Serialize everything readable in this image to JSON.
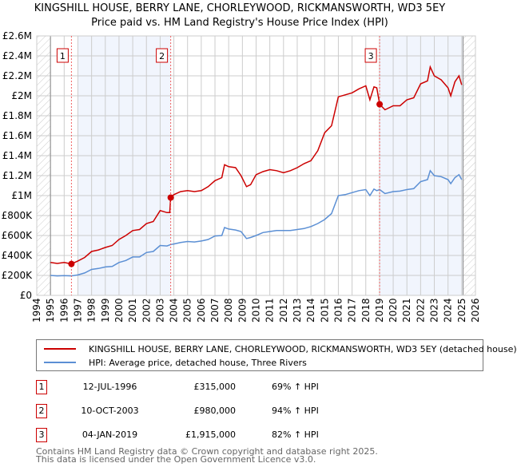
{
  "title_line1": "KINGSHILL HOUSE, BERRY LANE, CHORLEYWOOD, RICKMANSWORTH, WD3 5EY",
  "title_line2": "Price paid vs. HM Land Registry's House Price Index (HPI)",
  "chart_data": {
    "type": "line",
    "title": "KINGSHILL HOUSE, BERRY LANE, CHORLEYWOOD, RICKMANSWORTH, WD3 5EY - Price paid vs. HM Land Registry's House Price Index (HPI)",
    "xlim": [
      1994,
      2026
    ],
    "ylim": [
      0,
      2600000
    ],
    "x_ticks": [
      "1994",
      "1995",
      "1996",
      "1997",
      "1998",
      "1999",
      "2000",
      "2001",
      "2002",
      "2003",
      "2004",
      "2005",
      "2006",
      "2007",
      "2008",
      "2009",
      "2010",
      "2011",
      "2012",
      "2013",
      "2014",
      "2015",
      "2016",
      "2017",
      "2018",
      "2019",
      "2020",
      "2021",
      "2022",
      "2023",
      "2024",
      "2025",
      "2026"
    ],
    "y_ticks": [
      {
        "v": 0,
        "label": "£0"
      },
      {
        "v": 200000,
        "label": "£200K"
      },
      {
        "v": 400000,
        "label": "£400K"
      },
      {
        "v": 600000,
        "label": "£600K"
      },
      {
        "v": 800000,
        "label": "£800K"
      },
      {
        "v": 1000000,
        "label": "£1M"
      },
      {
        "v": 1200000,
        "label": "£1.2M"
      },
      {
        "v": 1400000,
        "label": "£1.4M"
      },
      {
        "v": 1600000,
        "label": "£1.6M"
      },
      {
        "v": 1800000,
        "label": "£1.8M"
      },
      {
        "v": 2000000,
        "label": "£2M"
      },
      {
        "v": 2200000,
        "label": "£2.2M"
      },
      {
        "v": 2400000,
        "label": "£2.4M"
      },
      {
        "v": 2600000,
        "label": "£2.6M"
      }
    ],
    "grid": true,
    "hatched_ranges": [
      [
        1994,
        1995
      ],
      [
        2025.1,
        2026
      ]
    ],
    "shaded_ranges": [
      [
        1997.0,
        2003.77
      ],
      [
        2019.01,
        2025.1
      ]
    ],
    "series": [
      {
        "name": "KINGSHILL HOUSE, BERRY LANE, CHORLEYWOOD, RICKMANSWORTH, WD3 5EY (detached house)",
        "color": "#cc0000",
        "x": [
          1995,
          1995.5,
          1996,
          1996.53,
          1997,
          1997.5,
          1998,
          1998.5,
          1999,
          1999.5,
          2000,
          2000.5,
          2001,
          2001.5,
          2002,
          2002.5,
          2003,
          2003.5,
          2003.7,
          2003.77,
          2004,
          2004.5,
          2005,
          2005.5,
          2006,
          2006.5,
          2007,
          2007.5,
          2007.7,
          2008,
          2008.5,
          2008.9,
          2009.3,
          2009.6,
          2010,
          2010.5,
          2011,
          2011.5,
          2012,
          2012.5,
          2013,
          2013.5,
          2014,
          2014.5,
          2015,
          2015.5,
          2016,
          2016.5,
          2017,
          2017.5,
          2018,
          2018.3,
          2018.6,
          2018.8,
          2019.01,
          2019.4,
          2020,
          2020.5,
          2021,
          2021.5,
          2022,
          2022.5,
          2022.7,
          2023,
          2023.5,
          2024,
          2024.2,
          2024.5,
          2024.8,
          2025
        ],
        "y": [
          330000,
          320000,
          330000,
          315000,
          345000,
          380000,
          440000,
          455000,
          480000,
          500000,
          560000,
          600000,
          650000,
          660000,
          720000,
          740000,
          850000,
          830000,
          830000,
          980000,
          1010000,
          1040000,
          1050000,
          1040000,
          1050000,
          1090000,
          1150000,
          1180000,
          1310000,
          1290000,
          1280000,
          1200000,
          1090000,
          1110000,
          1210000,
          1240000,
          1260000,
          1250000,
          1230000,
          1250000,
          1280000,
          1320000,
          1350000,
          1450000,
          1630000,
          1700000,
          1990000,
          2010000,
          2030000,
          2070000,
          2100000,
          1960000,
          2090000,
          2080000,
          1915000,
          1860000,
          1900000,
          1900000,
          1960000,
          1980000,
          2120000,
          2150000,
          2290000,
          2200000,
          2160000,
          2080000,
          2000000,
          2140000,
          2200000,
          2110000
        ]
      },
      {
        "name": "HPI: Average price, detached house, Three Rivers",
        "color": "#5b8fd4",
        "x": [
          1995,
          1995.5,
          1996,
          1996.53,
          1997,
          1997.5,
          1998,
          1998.5,
          1999,
          1999.5,
          2000,
          2000.5,
          2001,
          2001.5,
          2002,
          2002.5,
          2003,
          2003.5,
          2003.77,
          2004,
          2004.5,
          2005,
          2005.5,
          2006,
          2006.5,
          2007,
          2007.5,
          2007.7,
          2008,
          2008.5,
          2008.9,
          2009.3,
          2009.6,
          2010,
          2010.5,
          2011,
          2011.5,
          2012,
          2012.5,
          2013,
          2013.5,
          2014,
          2014.5,
          2015,
          2015.5,
          2016,
          2016.5,
          2017,
          2017.5,
          2018,
          2018.3,
          2018.6,
          2018.8,
          2019.01,
          2019.4,
          2020,
          2020.5,
          2021,
          2021.5,
          2022,
          2022.5,
          2022.7,
          2023,
          2023.5,
          2024,
          2024.2,
          2024.5,
          2024.8,
          2025
        ],
        "y": [
          200000,
          195000,
          198000,
          195000,
          205000,
          225000,
          260000,
          270000,
          285000,
          290000,
          330000,
          350000,
          385000,
          385000,
          430000,
          440000,
          500000,
          495000,
          510000,
          515000,
          530000,
          540000,
          535000,
          545000,
          560000,
          595000,
          600000,
          680000,
          665000,
          655000,
          640000,
          570000,
          580000,
          600000,
          630000,
          640000,
          650000,
          650000,
          650000,
          660000,
          670000,
          690000,
          720000,
          760000,
          820000,
          1000000,
          1010000,
          1030000,
          1050000,
          1060000,
          1000000,
          1065000,
          1050000,
          1060000,
          1020000,
          1040000,
          1045000,
          1060000,
          1070000,
          1140000,
          1160000,
          1250000,
          1200000,
          1190000,
          1160000,
          1120000,
          1180000,
          1210000,
          1160000
        ]
      }
    ],
    "markers": [
      {
        "label": "1",
        "x": 1996.53,
        "y": 315000
      },
      {
        "label": "2",
        "x": 2003.77,
        "y": 980000
      },
      {
        "label": "3",
        "x": 2019.01,
        "y": 1915000
      }
    ],
    "legend_position": "below"
  },
  "legend": {
    "property_label": "KINGSHILL HOUSE, BERRY LANE, CHORLEYWOOD, RICKMANSWORTH, WD3 5EY (detached house)",
    "hpi_label": "HPI: Average price, detached house, Three Rivers"
  },
  "transactions": [
    {
      "num": "1",
      "date": "12-JUL-1996",
      "price": "£315,000",
      "hpi": "69% ↑ HPI"
    },
    {
      "num": "2",
      "date": "10-OCT-2003",
      "price": "£980,000",
      "hpi": "94% ↑ HPI"
    },
    {
      "num": "3",
      "date": "04-JAN-2019",
      "price": "£1,915,000",
      "hpi": "82% ↑ HPI"
    }
  ],
  "footer": {
    "line1": "Contains HM Land Registry data © Crown copyright and database right 2025.",
    "line2": "This data is licensed under the Open Government Licence v3.0."
  }
}
